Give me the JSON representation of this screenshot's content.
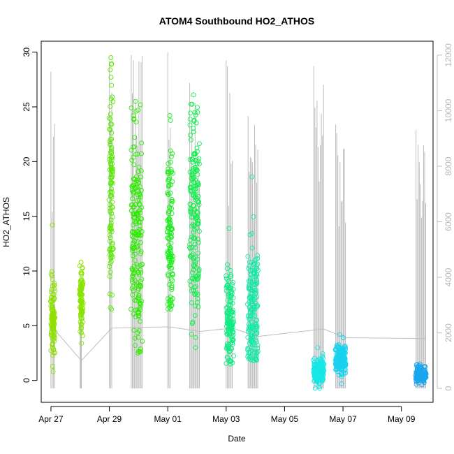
{
  "chart_data": {
    "type": "scatter",
    "title": "ATOM4 Southbound HO2_ATHOS",
    "xlabel": "Date",
    "ylabel": "HO2_ATHOS",
    "xlim": [
      "2018-04-26T16:00",
      "2018-05-10T02:00"
    ],
    "ylim": [
      -2,
      31
    ],
    "y_ticks": [
      0,
      5,
      10,
      15,
      20,
      25,
      30
    ],
    "x_ticks": [
      {
        "date": "2018-04-27",
        "label": "Apr 27"
      },
      {
        "date": "2018-04-29",
        "label": "Apr 29"
      },
      {
        "date": "2018-05-01",
        "label": "May 01"
      },
      {
        "date": "2018-05-03",
        "label": "May 03"
      },
      {
        "date": "2018-05-05",
        "label": "May 05"
      },
      {
        "date": "2018-05-07",
        "label": "May 07"
      },
      {
        "date": "2018-05-09",
        "label": "May 09"
      }
    ],
    "y2_ticks": [
      0,
      2000,
      4000,
      6000,
      8000,
      10000,
      12000
    ],
    "y2lim": [
      -500,
      12500
    ],
    "grid": false,
    "legend": "none",
    "point_style": "open-circle",
    "altitude_line_color": "#bdbdbd",
    "clusters": [
      {
        "start": "2018-04-27T00:00",
        "end": "2018-04-27T03:00",
        "center": 5.5,
        "spread": 2.0,
        "min": 0.8,
        "max": 14.2,
        "color": "#8ee000"
      },
      {
        "start": "2018-04-28T00:00",
        "end": "2018-04-28T02:00",
        "center": 7.5,
        "spread": 1.6,
        "min": 3.4,
        "max": 10.8,
        "color": "#89e300"
      },
      {
        "start": "2018-04-29T00:00",
        "end": "2018-04-29T03:00",
        "center": 17.5,
        "spread": 5.0,
        "min": 6.5,
        "max": 29.5,
        "color": "#5ae800"
      },
      {
        "start": "2018-04-29T18:00",
        "end": "2018-04-30T03:00",
        "center": 13.5,
        "spread": 5.5,
        "min": 2.5,
        "max": 25.5,
        "color": "#2cec00"
      },
      {
        "start": "2018-05-01T00:00",
        "end": "2018-05-01T04:00",
        "center": 13.0,
        "spread": 4.0,
        "min": 6.5,
        "max": 24.2,
        "color": "#19ee1a"
      },
      {
        "start": "2018-05-01T18:00",
        "end": "2018-05-02T02:00",
        "center": 15.5,
        "spread": 4.5,
        "min": 3.0,
        "max": 26.1,
        "color": "#12ee4a"
      },
      {
        "start": "2018-05-03T00:00",
        "end": "2018-05-03T06:00",
        "center": 5.5,
        "spread": 2.2,
        "min": 1.5,
        "max": 13.9,
        "color": "#10ec82"
      },
      {
        "start": "2018-05-03T18:00",
        "end": "2018-05-04T02:00",
        "center": 6.5,
        "spread": 3.0,
        "min": 1.8,
        "max": 18.6,
        "color": "#12eaa6"
      },
      {
        "start": "2018-05-06T00:00",
        "end": "2018-05-06T08:00",
        "center": 0.8,
        "spread": 0.6,
        "min": -0.7,
        "max": 3.0,
        "color": "#16e6e6"
      },
      {
        "start": "2018-05-06T18:00",
        "end": "2018-05-07T02:00",
        "center": 2.0,
        "spread": 0.7,
        "min": -0.3,
        "max": 4.2,
        "color": "#18d2ee"
      },
      {
        "start": "2018-05-09T12:00",
        "end": "2018-05-09T20:00",
        "center": 0.5,
        "spread": 0.35,
        "min": -0.4,
        "max": 1.5,
        "color": "#1aa6ee"
      }
    ],
    "altitude_spikes": [
      {
        "start": "2018-04-27T00:00",
        "end": "2018-04-27T03:00",
        "max": 11400
      },
      {
        "start": "2018-04-28T00:00",
        "end": "2018-04-28T01:00",
        "max": 4000
      },
      {
        "start": "2018-04-29T00:00",
        "end": "2018-04-29T02:00",
        "max": 11800
      },
      {
        "start": "2018-04-29T18:00",
        "end": "2018-04-30T03:00",
        "max": 12000
      },
      {
        "start": "2018-05-01T00:00",
        "end": "2018-05-01T02:00",
        "max": 12100
      },
      {
        "start": "2018-05-01T18:00",
        "end": "2018-05-02T02:00",
        "max": 11000
      },
      {
        "start": "2018-05-03T00:00",
        "end": "2018-05-03T05:00",
        "max": 11800
      },
      {
        "start": "2018-05-03T18:00",
        "end": "2018-05-04T02:00",
        "max": 9800
      },
      {
        "start": "2018-05-06T00:00",
        "end": "2018-05-06T08:00",
        "max": 11600
      },
      {
        "start": "2018-05-06T18:00",
        "end": "2018-05-07T02:00",
        "max": 9500
      },
      {
        "start": "2018-05-09T12:00",
        "end": "2018-05-09T20:00",
        "max": 9300
      }
    ]
  }
}
